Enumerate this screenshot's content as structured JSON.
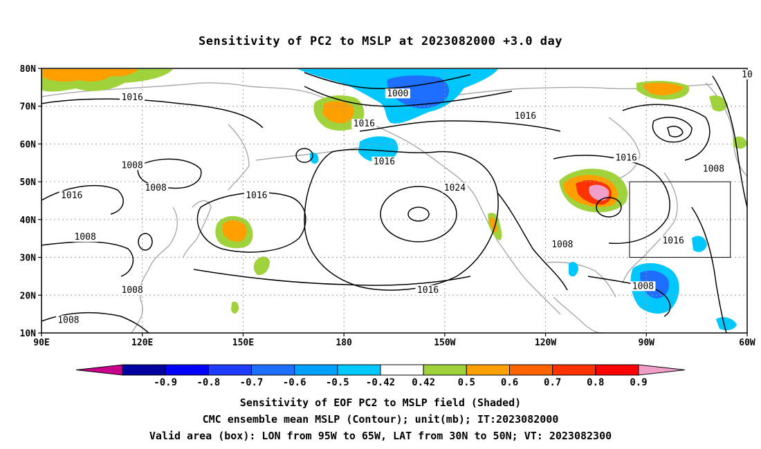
{
  "chart_data": {
    "type": "heatmap",
    "title": "Sensitivity of PC2 to MSLP at 2023082000 +3.0 day",
    "map": {
      "lon_range": [
        90,
        300
      ],
      "lat_range": [
        10,
        80
      ],
      "x_tick_labels": [
        "90E",
        "120E",
        "150E",
        "180",
        "150W",
        "120W",
        "90W",
        "60W"
      ],
      "x_tick_lons": [
        90,
        120,
        150,
        180,
        210,
        240,
        270,
        300
      ],
      "y_tick_labels": [
        "10N",
        "20N",
        "30N",
        "40N",
        "50N",
        "60N",
        "70N",
        "80N"
      ],
      "y_tick_lats": [
        10,
        20,
        30,
        40,
        50,
        60,
        70,
        80
      ],
      "grid": true,
      "valid_box": {
        "lon": [
          265,
          295
        ],
        "lat": [
          30,
          50
        ]
      }
    },
    "colorbar": {
      "labels": [
        "-0.9",
        "-0.8",
        "-0.7",
        "-0.6",
        "-0.5",
        "-0.42",
        "0.42",
        "0.5",
        "0.6",
        "0.7",
        "0.8",
        "0.9"
      ],
      "colors": [
        "#c8008c",
        "#0000a0",
        "#0000ff",
        "#1e3cff",
        "#1e6eff",
        "#00a0ff",
        "#00c8ff",
        "#ffffff",
        "#a0d23c",
        "#ffa000",
        "#ff6400",
        "#ff3200",
        "#ff0000",
        "#f0a0c8"
      ]
    },
    "contour_labels": [
      {
        "text": "1016",
        "lon": 117,
        "lat": 72
      },
      {
        "text": "1000",
        "lon": 196,
        "lat": 73
      },
      {
        "text": "1016",
        "lon": 186,
        "lat": 65
      },
      {
        "text": "1016",
        "lon": 234,
        "lat": 67
      },
      {
        "text": "1008",
        "lon": 117,
        "lat": 54
      },
      {
        "text": "1016",
        "lon": 192,
        "lat": 55
      },
      {
        "text": "1016",
        "lon": 264,
        "lat": 56
      },
      {
        "text": "1008",
        "lon": 290,
        "lat": 53
      },
      {
        "text": "1024",
        "lon": 213,
        "lat": 48
      },
      {
        "text": "1008",
        "lon": 124,
        "lat": 48
      },
      {
        "text": "1016",
        "lon": 99,
        "lat": 46
      },
      {
        "text": "1016",
        "lon": 154,
        "lat": 46
      },
      {
        "text": "1008",
        "lon": 103,
        "lat": 35
      },
      {
        "text": "1008",
        "lon": 245,
        "lat": 33
      },
      {
        "text": "1016",
        "lon": 278,
        "lat": 34
      },
      {
        "text": "1008",
        "lon": 117,
        "lat": 21
      },
      {
        "text": "1016",
        "lon": 205,
        "lat": 21
      },
      {
        "text": "1008",
        "lon": 269,
        "lat": 22
      },
      {
        "text": "1008",
        "lon": 98,
        "lat": 13
      },
      {
        "text": "10",
        "lon": 300,
        "lat": 78
      }
    ]
  },
  "captions": {
    "line1": "Sensitivity of EOF PC2 to MSLP field (Shaded)",
    "line2": "CMC ensemble mean MSLP (Contour); unit(mb); IT:2023082000",
    "line3": "Valid area (box): LON from 95W to 65W, LAT from 30N to 50N; VT: 2023082300"
  }
}
